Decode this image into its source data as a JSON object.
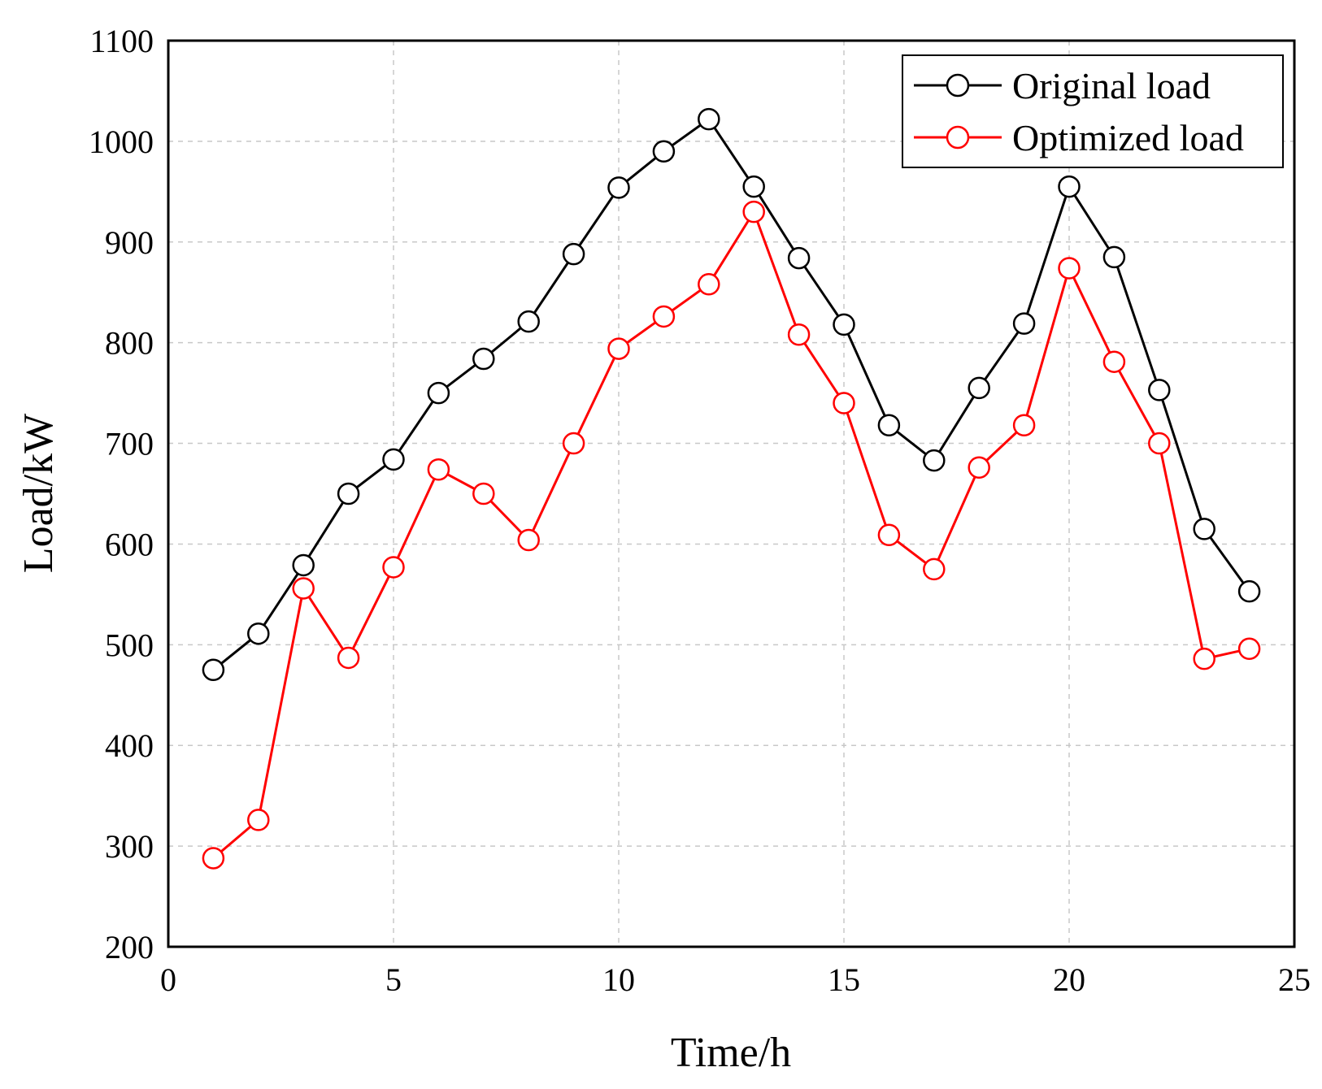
{
  "chart_data": {
    "type": "line",
    "xlabel": "Time/h",
    "ylabel": "Load/kW",
    "xlim": [
      0,
      25
    ],
    "ylim": [
      200,
      1100
    ],
    "xticks": [
      0,
      5,
      10,
      15,
      20,
      25
    ],
    "yticks": [
      200,
      300,
      400,
      500,
      600,
      700,
      800,
      900,
      1000,
      1100
    ],
    "grid": true,
    "legend_position": "top-right",
    "x": [
      1,
      2,
      3,
      4,
      5,
      6,
      7,
      8,
      9,
      10,
      11,
      12,
      13,
      14,
      15,
      16,
      17,
      18,
      19,
      20,
      21,
      22,
      23,
      24
    ],
    "series": [
      {
        "name": "Original load",
        "color": "#000000",
        "marker": "open-circle",
        "values": [
          475,
          511,
          579,
          650,
          684,
          750,
          784,
          821,
          888,
          954,
          990,
          1022,
          955,
          884,
          818,
          718,
          683,
          755,
          819,
          955,
          885,
          753,
          615,
          553
        ]
      },
      {
        "name": "Optimized load",
        "color": "#ff0000",
        "marker": "open-circle",
        "values": [
          288,
          326,
          556,
          487,
          577,
          674,
          650,
          604,
          700,
          794,
          826,
          858,
          930,
          808,
          740,
          609,
          575,
          676,
          718,
          874,
          781,
          700,
          486,
          496
        ]
      }
    ]
  }
}
